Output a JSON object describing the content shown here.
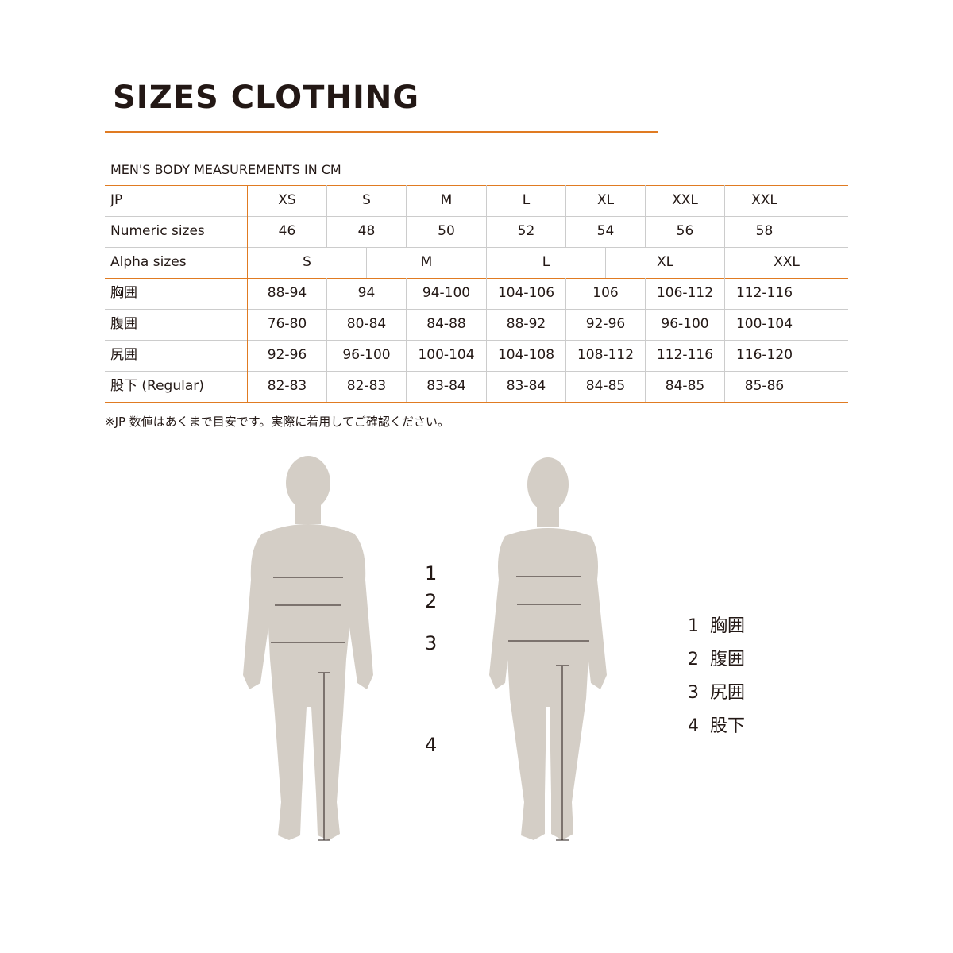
{
  "title": "SIZES CLOTHING",
  "subtitle": "MEN'S BODY MEASUREMENTS IN CM",
  "accent_color": "#e07b22",
  "table": {
    "jp": {
      "label": "JP",
      "values": [
        "XS",
        "S",
        "M",
        "L",
        "XL",
        "XXL",
        "XXL"
      ]
    },
    "numeric": {
      "label": "Numeric sizes",
      "values": [
        "46",
        "48",
        "50",
        "52",
        "54",
        "56",
        "58"
      ]
    },
    "alpha": {
      "label": "Alpha sizes",
      "values": [
        "S",
        "M",
        "L",
        "XL",
        "XXL"
      ]
    },
    "rows": [
      {
        "label": "胸囲",
        "values": [
          "88-94",
          "94",
          "94-100",
          "104-106",
          "106",
          "106-112",
          "112-116"
        ]
      },
      {
        "label": "腹囲",
        "values": [
          "76-80",
          "80-84",
          "84-88",
          "88-92",
          "92-96",
          "96-100",
          "100-104"
        ]
      },
      {
        "label": "尻囲",
        "values": [
          "92-96",
          "96-100",
          "100-104",
          "104-108",
          "108-112",
          "112-116",
          "116-120"
        ]
      },
      {
        "label": "股下 (Regular)",
        "values": [
          "82-83",
          "82-83",
          "83-84",
          "83-84",
          "84-85",
          "84-85",
          "85-86"
        ]
      }
    ]
  },
  "note": "※JP 数値はあくまで目安です。実際に着用してご確認ください。",
  "diagram": {
    "numbers": [
      "1",
      "2",
      "3",
      "4"
    ],
    "legend": [
      {
        "n": "1",
        "label": "胸囲"
      },
      {
        "n": "2",
        "label": "腹囲"
      },
      {
        "n": "3",
        "label": "尻囲"
      },
      {
        "n": "4",
        "label": "股下"
      }
    ]
  }
}
